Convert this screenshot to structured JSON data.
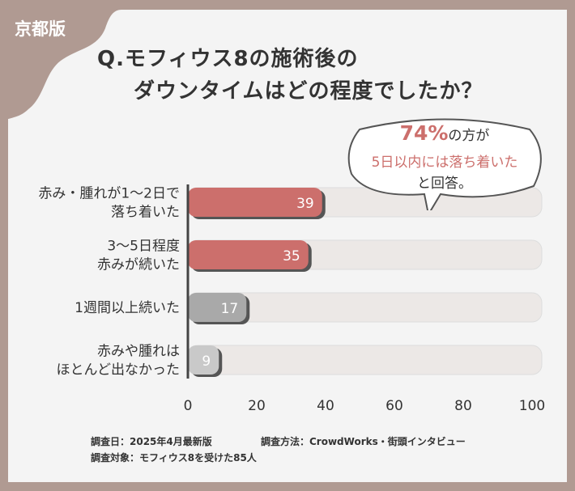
{
  "badge": "京都版",
  "title": [
    "Q.モフィウス8の施術後の",
    "ダウンタイムはどの程度でしたか？"
  ],
  "callout": {
    "percent": "74%",
    "line1_rest": "の方が",
    "line2": "5日以内には落ち着いた",
    "line3": "と回答。"
  },
  "footer": {
    "date": "調査日：2025年4月最新版",
    "method": "調査方法：CrowdWorks・街頭インタビュー",
    "target": "調査対象：モフィウス8を受けた85人"
  },
  "chart_data": {
    "type": "bar",
    "orientation": "horizontal",
    "categories": [
      [
        "赤み・腫れが1〜2日で",
        "落ち着いた"
      ],
      [
        "3〜5日程度",
        "赤みが続いた"
      ],
      [
        "1週間以上続いた"
      ],
      [
        "赤みや腫れは",
        "ほとんど出なかった"
      ]
    ],
    "values": [
      39,
      35,
      17,
      9
    ],
    "value_labels": [
      "39",
      "35",
      "17",
      "9"
    ],
    "xlim": [
      0,
      100
    ],
    "xticks": [
      "0",
      "20",
      "40",
      "60",
      "80",
      "100"
    ],
    "colors": [
      "#cc6f6c",
      "#cc6f6c",
      "#a9a9a9",
      "#c9c9c9"
    ],
    "track_color": "#ece8e6",
    "grid": false
  }
}
